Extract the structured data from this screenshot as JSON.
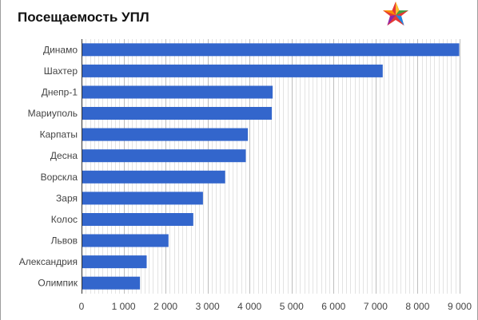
{
  "chart_data": {
    "type": "bar",
    "orientation": "horizontal",
    "title": "Посещаемость УПЛ",
    "categories": [
      "Динамо",
      "Шахтер",
      "Днепр-1",
      "Мариуполь",
      "Карпаты",
      "Десна",
      "Ворскла",
      "Заря",
      "Колос",
      "Львов",
      "Александрия",
      "Олимпик"
    ],
    "values": [
      8990,
      7170,
      4550,
      4530,
      3960,
      3910,
      3420,
      2890,
      2660,
      2070,
      1550,
      1390
    ],
    "xlim": [
      0,
      9000
    ],
    "x_ticks": [
      0,
      1000,
      2000,
      3000,
      4000,
      5000,
      6000,
      7000,
      8000,
      9000
    ],
    "x_tick_labels": [
      "0",
      "1 000",
      "2 000",
      "3 000",
      "4 000",
      "5 000",
      "6 000",
      "7 000",
      "8 000",
      "9 000"
    ],
    "xlabel": "",
    "ylabel": "",
    "grid": true,
    "legend": "none",
    "colors": {
      "bar": "#3366cc",
      "grid": "#cccccc"
    }
  },
  "logo": {
    "icon": "star-logo-icon"
  }
}
